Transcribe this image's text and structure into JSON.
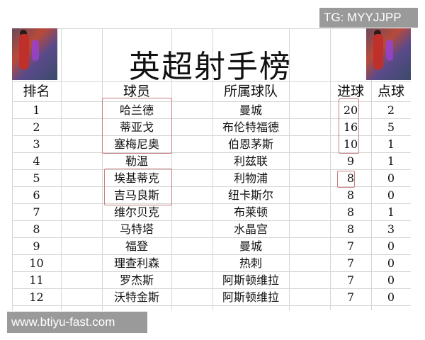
{
  "title": "英超射手榜",
  "watermark_top": "TG: MYYJJPP",
  "watermark_bottom": "www.btiyu-fast.com",
  "headers": {
    "rank": "排名",
    "player": "球员",
    "team": "所属球队",
    "goals": "进球",
    "penalties": "点球"
  },
  "rows": [
    {
      "rank": "1",
      "player": "哈兰德",
      "team": "曼城",
      "goals": "20",
      "penalties": "2"
    },
    {
      "rank": "2",
      "player": "蒂亚戈",
      "team": "布伦特福德",
      "goals": "16",
      "penalties": "5"
    },
    {
      "rank": "3",
      "player": "塞梅尼奥",
      "team": "伯恩茅斯",
      "goals": "10",
      "penalties": "1"
    },
    {
      "rank": "4",
      "player": "勒温",
      "team": "利兹联",
      "goals": "9",
      "penalties": "1"
    },
    {
      "rank": "5",
      "player": "埃基蒂克",
      "team": "利物浦",
      "goals": "8",
      "penalties": "0"
    },
    {
      "rank": "6",
      "player": "吉马良斯",
      "team": "纽卡斯尔",
      "goals": "8",
      "penalties": "0"
    },
    {
      "rank": "7",
      "player": "维尔贝克",
      "team": "布莱顿",
      "goals": "8",
      "penalties": "1"
    },
    {
      "rank": "8",
      "player": "马特塔",
      "team": "水晶宫",
      "goals": "8",
      "penalties": "3"
    },
    {
      "rank": "9",
      "player": "福登",
      "team": "曼城",
      "goals": "7",
      "penalties": "0"
    },
    {
      "rank": "10",
      "player": "理查利森",
      "team": "热刺",
      "goals": "7",
      "penalties": "0"
    },
    {
      "rank": "11",
      "player": "罗杰斯",
      "team": "阿斯顿维拉",
      "goals": "7",
      "penalties": "0"
    },
    {
      "rank": "12",
      "player": "沃特金斯",
      "team": "阿斯顿维拉",
      "goals": "7",
      "penalties": "0"
    }
  ],
  "highlight_color": "#c98080"
}
